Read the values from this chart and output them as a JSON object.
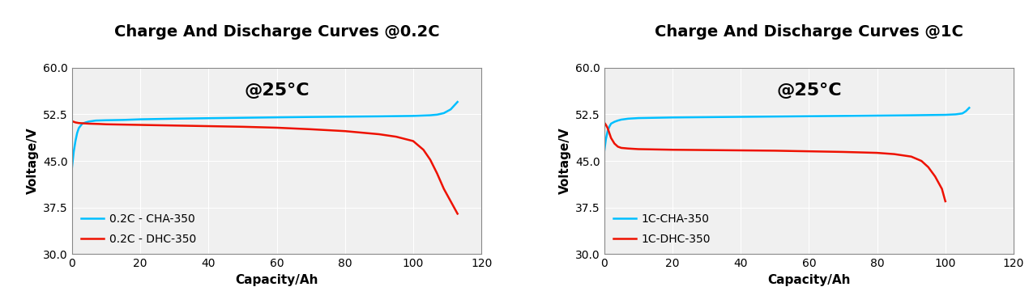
{
  "chart1": {
    "title": "Charge And Discharge Curves @0.2C",
    "annotation": "@25°C",
    "xlabel": "Capacity/Ah",
    "ylabel": "Voltage/V",
    "xlim": [
      0,
      120
    ],
    "ylim": [
      30,
      60
    ],
    "yticks": [
      30,
      37.5,
      45,
      52.5,
      60
    ],
    "xticks": [
      0,
      20,
      40,
      60,
      80,
      100,
      120
    ],
    "charge_label": "0.2C - CHA-350",
    "discharge_label": "0.2C - DHC-350",
    "charge_color": "#00BFFF",
    "discharge_color": "#EE1100"
  },
  "chart2": {
    "title": "Charge And Discharge Curves @1C",
    "annotation": "@25°C",
    "xlabel": "Capacity/Ah",
    "ylabel": "Voltage/V",
    "xlim": [
      0,
      120
    ],
    "ylim": [
      30,
      60
    ],
    "yticks": [
      30,
      37.5,
      45,
      52.5,
      60
    ],
    "xticks": [
      0,
      20,
      40,
      60,
      80,
      100,
      120
    ],
    "charge_label": "1C-CHA-350",
    "discharge_label": "1C-DHC-350",
    "charge_color": "#00BFFF",
    "discharge_color": "#EE1100"
  },
  "background_color": "#FFFFFF",
  "plot_bg_color": "#F0F0F0",
  "grid_color": "#FFFFFF",
  "title_fontsize": 14,
  "label_fontsize": 11,
  "tick_fontsize": 10,
  "legend_fontsize": 10,
  "annotation_fontsize": 16
}
